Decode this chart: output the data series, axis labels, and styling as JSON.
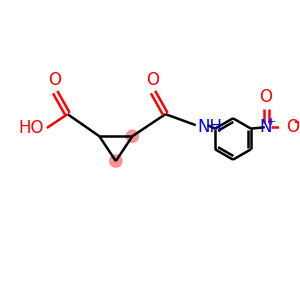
{
  "bg_color": "#ffffff",
  "bond_color": "#000000",
  "oxygen_color": "#ff0000",
  "nitrogen_color": "#0000ff",
  "highlight_color": "#ff8080",
  "line_width": 1.8,
  "figsize": [
    3.0,
    3.0
  ],
  "dpi": 100,
  "xlim": [
    0,
    10
  ],
  "ylim": [
    0,
    10
  ]
}
